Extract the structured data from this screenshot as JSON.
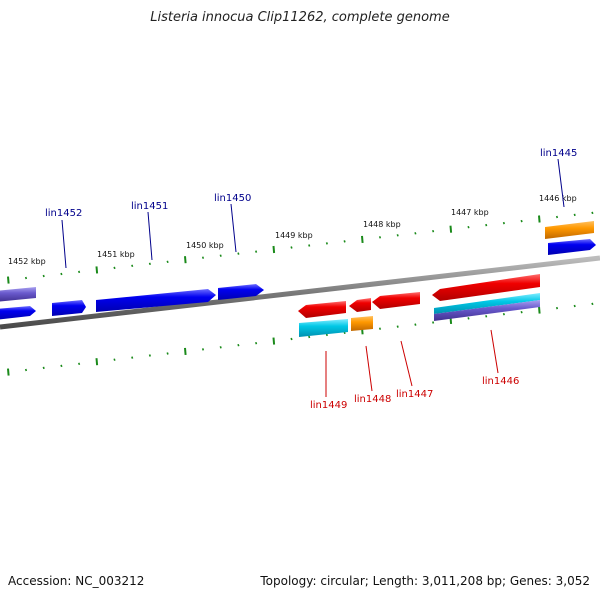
{
  "title": "Listeria innocua Clip11262, complete genome",
  "footer": {
    "accession": "Accession: NC_003212",
    "summary": "Topology: circular; Length: 3,011,208 bp; Genes: 3,052"
  },
  "kbp_labels": [
    "1452 kbp",
    "1451 kbp",
    "1450 kbp",
    "1449 kbp",
    "1448 kbp",
    "1447 kbp",
    "1446 kbp"
  ],
  "genes": [
    {
      "name": "lin1452",
      "strand": "forward",
      "color": "#00008b"
    },
    {
      "name": "lin1451",
      "strand": "forward",
      "color": "#00008b"
    },
    {
      "name": "lin1450",
      "strand": "forward",
      "color": "#00008b"
    },
    {
      "name": "lin1445",
      "strand": "forward",
      "color": "#00008b"
    },
    {
      "name": "lin1449",
      "strand": "reverse",
      "color": "#cc0000"
    },
    {
      "name": "lin1448",
      "strand": "reverse",
      "color": "#cc0000"
    },
    {
      "name": "lin1447",
      "strand": "reverse",
      "color": "#cc0000"
    },
    {
      "name": "lin1446",
      "strand": "reverse",
      "color": "#cc0000"
    }
  ],
  "colors": {
    "forward_cds": "#0000ee",
    "reverse_cds": "#ee0000",
    "orange_feature": "#ff9900",
    "cyan_feature": "#00c8e6",
    "purple_feature": "#6a5acd",
    "backbone": "#808080",
    "tick": "#1a8a1a"
  }
}
